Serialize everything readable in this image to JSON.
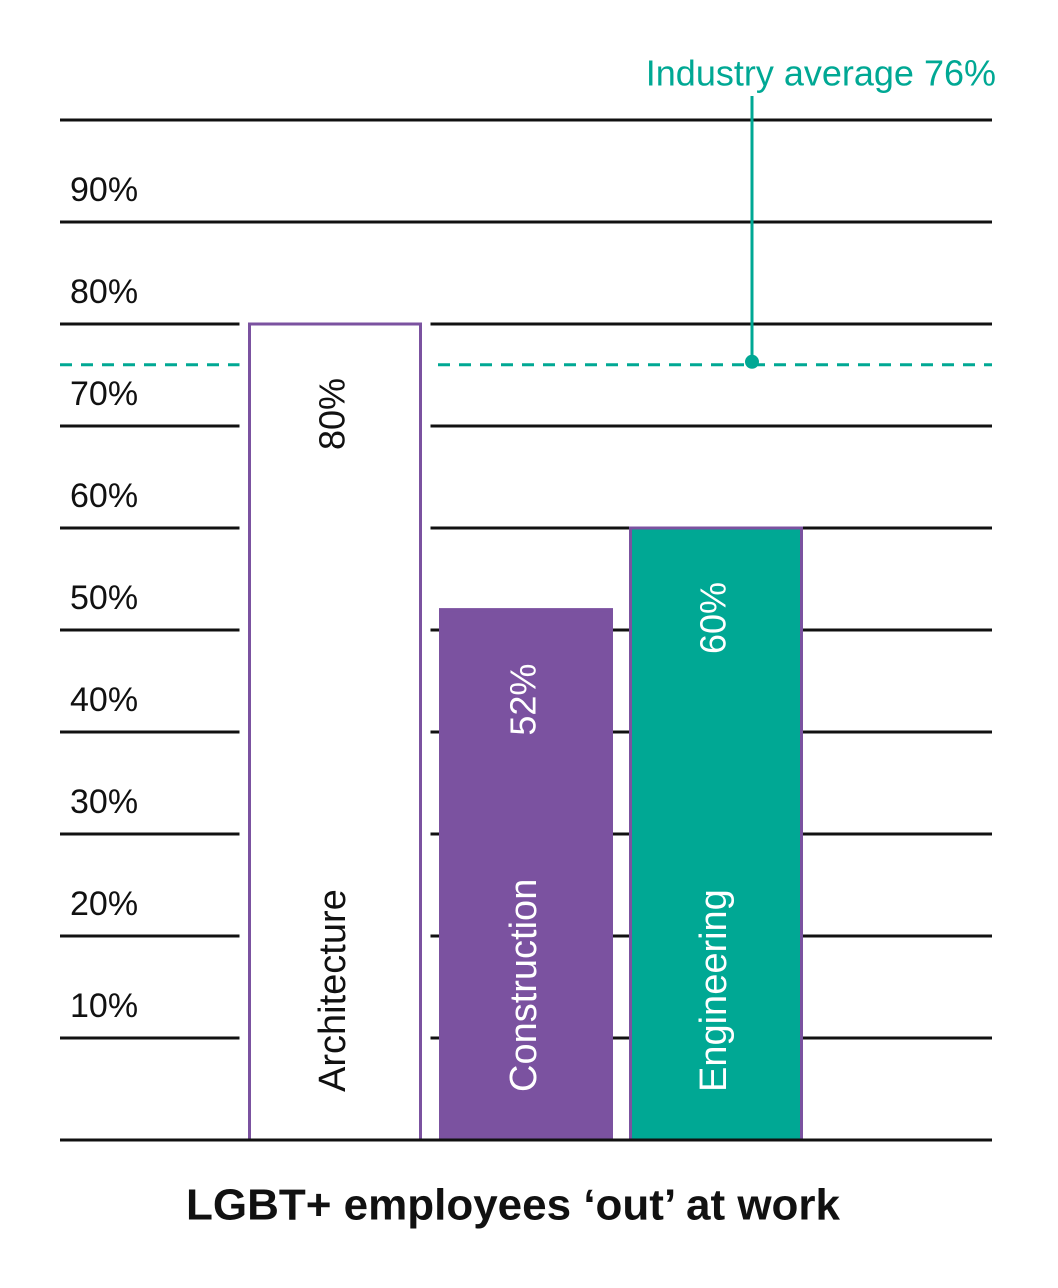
{
  "chart_data": {
    "type": "bar",
    "title": "LGBT+ employees ‘out’ at work",
    "categories": [
      "Architecture",
      "Construction",
      "Engineering"
    ],
    "values": [
      80,
      52,
      60
    ],
    "value_labels": [
      "80%",
      "52%",
      "60%"
    ],
    "colors": [
      "#ffffff",
      "#7b52a0",
      "#00a894"
    ],
    "edge_color": "#7b52a0",
    "ylim": [
      0,
      100
    ],
    "yticks": [
      {
        "value": 10,
        "label": "10%"
      },
      {
        "value": 20,
        "label": "20%"
      },
      {
        "value": 30,
        "label": "30%"
      },
      {
        "value": 40,
        "label": "40%"
      },
      {
        "value": 50,
        "label": "50%"
      },
      {
        "value": 60,
        "label": "60%"
      },
      {
        "value": 70,
        "label": "70%"
      },
      {
        "value": 80,
        "label": "80%"
      },
      {
        "value": 90,
        "label": "90%"
      }
    ],
    "grid": true,
    "reference_line": {
      "value": 76,
      "label": "Industry average 76%",
      "color": "#00a894"
    }
  }
}
